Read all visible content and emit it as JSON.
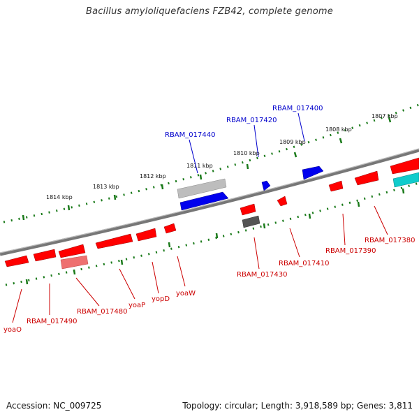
{
  "title": "Bacillus amyloliquefaciens FZB42, complete genome",
  "footer": {
    "accession": "Accession: NC_009725",
    "topology": "Topology: circular; Length: 3,918,589 bp; Genes: 3,811"
  },
  "colors": {
    "backbone": "#808080",
    "forward_gene": "#0000ff",
    "reverse_gene": "#ff0000",
    "pseudo_gene_light": "#c0c0c0",
    "pseudo_gene_dark": "#606060",
    "rna_gene": "#00cccc",
    "faded_reverse": "#f08080",
    "tick": "#1a7a1a",
    "forward_label": "#0000cc",
    "reverse_label": "#cc0000"
  },
  "scale_labels": [
    "1807 kbp",
    "1808 kbp",
    "1809 kbp",
    "1810 kbp",
    "1811 kbp",
    "1812 kbp",
    "1813 kbp",
    "1814 kbp"
  ],
  "forward_labels": [
    "RBAM_017400",
    "RBAM_017420",
    "RBAM_017440"
  ],
  "reverse_labels": [
    "RBAM_017380",
    "RBAM_017390",
    "RBAM_017410",
    "RBAM_017430",
    "yoaW",
    "yopD",
    "yoaP",
    "RBAM_017480",
    "RBAM_017490",
    "yoaO"
  ]
}
